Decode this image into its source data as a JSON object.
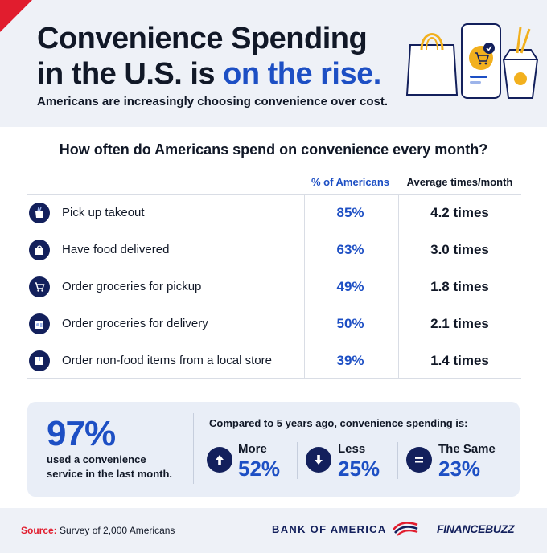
{
  "header": {
    "title_line1": "Convenience Spending",
    "title_line2_prefix": "in the U.S. is ",
    "title_line2_highlight": "on the rise.",
    "subtitle": "Americans are increasingly choosing convenience over cost."
  },
  "question": "How often do Americans spend on convenience every month?",
  "table": {
    "col_pct": "% of Americans",
    "col_avg": "Average times/month",
    "rows": [
      {
        "label": "Pick up takeout",
        "pct": "85%",
        "avg": "4.2 times",
        "icon": "takeout-box-icon"
      },
      {
        "label": "Have food delivered",
        "pct": "63%",
        "avg": "3.0 times",
        "icon": "shopping-bag-icon"
      },
      {
        "label": "Order groceries for pickup",
        "pct": "49%",
        "avg": "1.8 times",
        "icon": "shopping-cart-icon"
      },
      {
        "label": "Order groceries for delivery",
        "pct": "50%",
        "avg": "2.1 times",
        "icon": "grocery-bag-icon"
      },
      {
        "label": "Order non-food items from a local store",
        "pct": "39%",
        "avg": "1.4 times",
        "icon": "package-icon"
      }
    ]
  },
  "summary": {
    "big_value": "97%",
    "big_label_line1": "used a convenience",
    "big_label_line2": "service in the last month.",
    "compared": "Compared to 5 years ago, convenience spending is:",
    "stats": [
      {
        "label": "More",
        "value": "52%",
        "icon": "arrow-up-icon"
      },
      {
        "label": "Less",
        "value": "25%",
        "icon": "arrow-down-icon"
      },
      {
        "label": "The Same",
        "value": "23%",
        "icon": "equals-icon"
      }
    ]
  },
  "footer": {
    "source_label": "Source:",
    "source_text": " Survey of 2,000 Americans",
    "bank_logo": "BANK OF AMERICA",
    "fb_logo": "FINANCEBUZZ"
  },
  "colors": {
    "accent": "#1d4fc4",
    "navy": "#13205c",
    "red": "#e11d2e",
    "panel": "#e9eef7"
  }
}
